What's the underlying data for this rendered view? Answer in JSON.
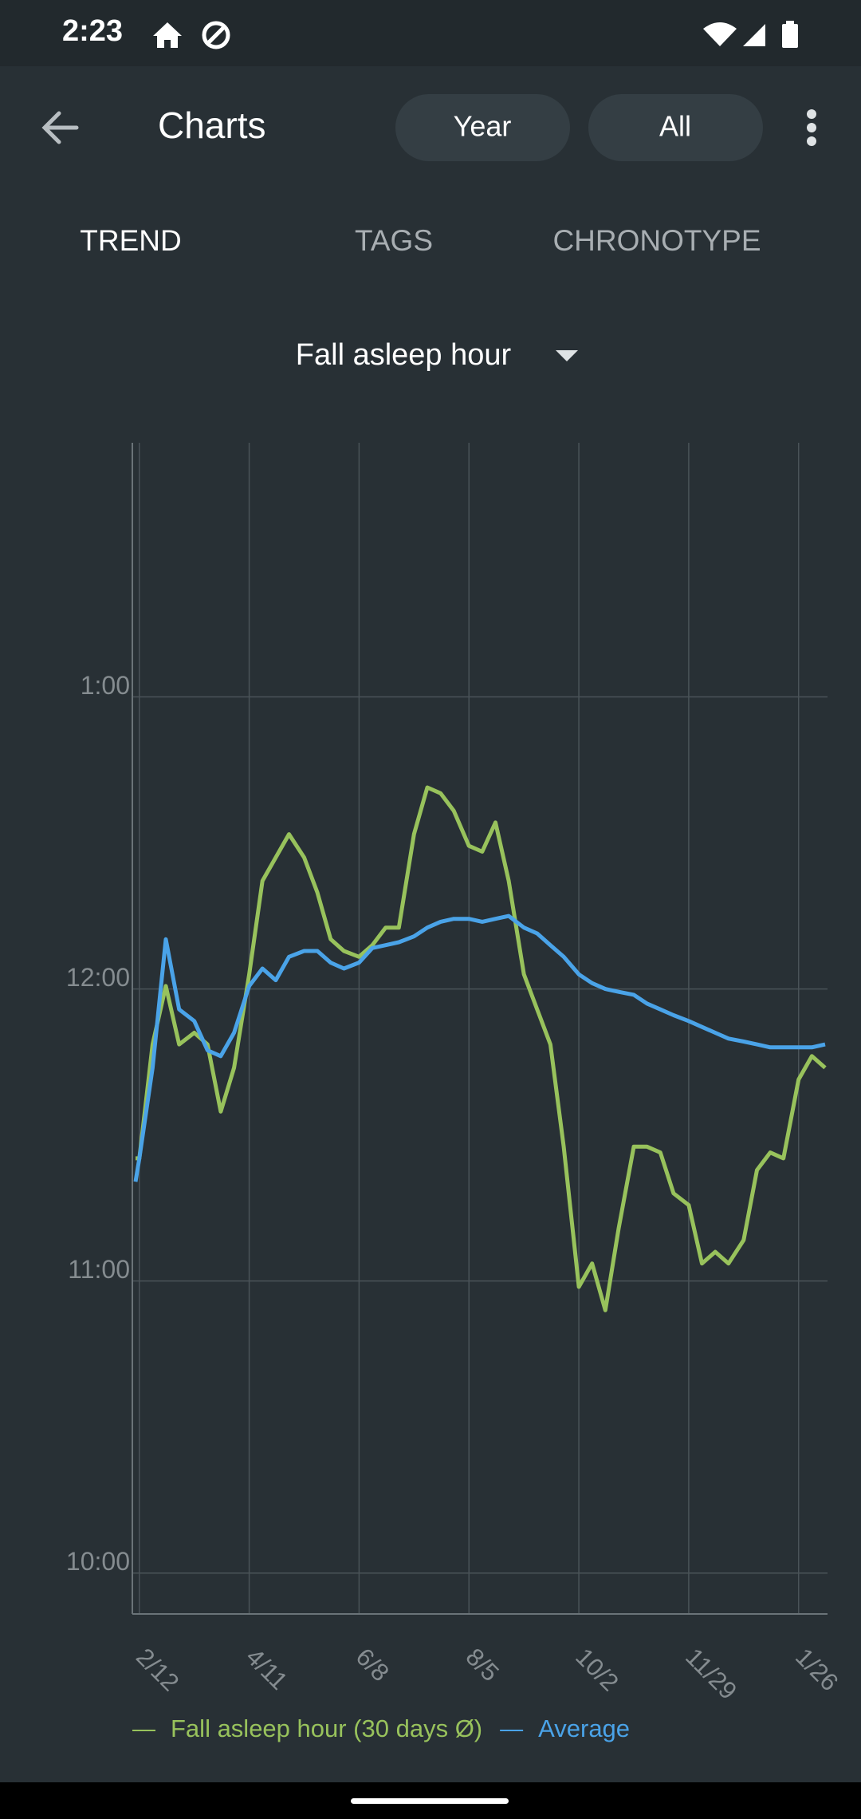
{
  "status_bar": {
    "time": "2:23"
  },
  "app_bar": {
    "title": "Charts",
    "filters": [
      "Year",
      "All"
    ]
  },
  "tabs": [
    "TREND",
    "TAGS",
    "CHRONOTYPE"
  ],
  "metric_selector": "Fall asleep hour",
  "chart_data": {
    "type": "line",
    "x": [
      "2/10",
      "2/12",
      "2/19",
      "2/26",
      "3/5",
      "3/13",
      "3/20",
      "3/27",
      "4/3",
      "4/11",
      "4/18",
      "4/25",
      "5/2",
      "5/10",
      "5/17",
      "5/24",
      "5/31",
      "6/8",
      "6/15",
      "6/22",
      "6/29",
      "7/7",
      "7/14",
      "7/21",
      "7/28",
      "8/5",
      "8/12",
      "8/19",
      "8/26",
      "9/3",
      "9/10",
      "9/17",
      "9/24",
      "10/2",
      "10/9",
      "10/16",
      "10/23",
      "10/31",
      "11/7",
      "11/14",
      "11/21",
      "11/29",
      "12/6",
      "12/13",
      "12/20",
      "12/28",
      "1/4",
      "1/11",
      "1/18",
      "1/26",
      "2/2",
      "2/9"
    ],
    "xticks": [
      "2/12",
      "4/11",
      "6/8",
      "8/5",
      "10/2",
      "11/29",
      "1/26"
    ],
    "ylim": [
      21.86,
      25.87
    ],
    "yticks": [
      {
        "value": 22,
        "label": "10:00"
      },
      {
        "value": 23,
        "label": "11:00"
      },
      {
        "value": 24,
        "label": "12:00"
      },
      {
        "value": 25,
        "label": "1:00"
      }
    ],
    "grid": true,
    "series": [
      {
        "name": "Fall asleep hour (30 days Ø)",
        "color": "#98c25c",
        "values": [
          23.42,
          23.42,
          23.81,
          24.01,
          23.81,
          23.85,
          23.81,
          23.58,
          23.73,
          24.05,
          24.37,
          24.45,
          24.53,
          24.45,
          24.33,
          24.17,
          24.13,
          24.11,
          24.15,
          24.21,
          24.21,
          24.53,
          24.69,
          24.67,
          24.61,
          24.49,
          24.47,
          24.57,
          24.37,
          24.05,
          23.93,
          23.81,
          23.46,
          22.98,
          23.06,
          22.9,
          23.18,
          23.46,
          23.46,
          23.44,
          23.3,
          23.26,
          23.06,
          23.1,
          23.06,
          23.14,
          23.38,
          23.44,
          23.42,
          23.69,
          23.77,
          23.73
        ]
      },
      {
        "name": "Average",
        "color": "#4aa3e8",
        "values": [
          23.34,
          23.42,
          23.73,
          24.17,
          23.93,
          23.89,
          23.79,
          23.77,
          23.85,
          24.01,
          24.07,
          24.03,
          24.11,
          24.13,
          24.13,
          24.09,
          24.07,
          24.09,
          24.14,
          24.15,
          24.16,
          24.18,
          24.21,
          24.23,
          24.24,
          24.24,
          24.23,
          24.24,
          24.25,
          24.21,
          24.19,
          24.15,
          24.11,
          24.05,
          24.02,
          24.0,
          23.99,
          23.98,
          23.95,
          23.93,
          23.91,
          23.89,
          23.87,
          23.85,
          23.83,
          23.82,
          23.81,
          23.8,
          23.8,
          23.8,
          23.8,
          23.81
        ]
      }
    ]
  }
}
